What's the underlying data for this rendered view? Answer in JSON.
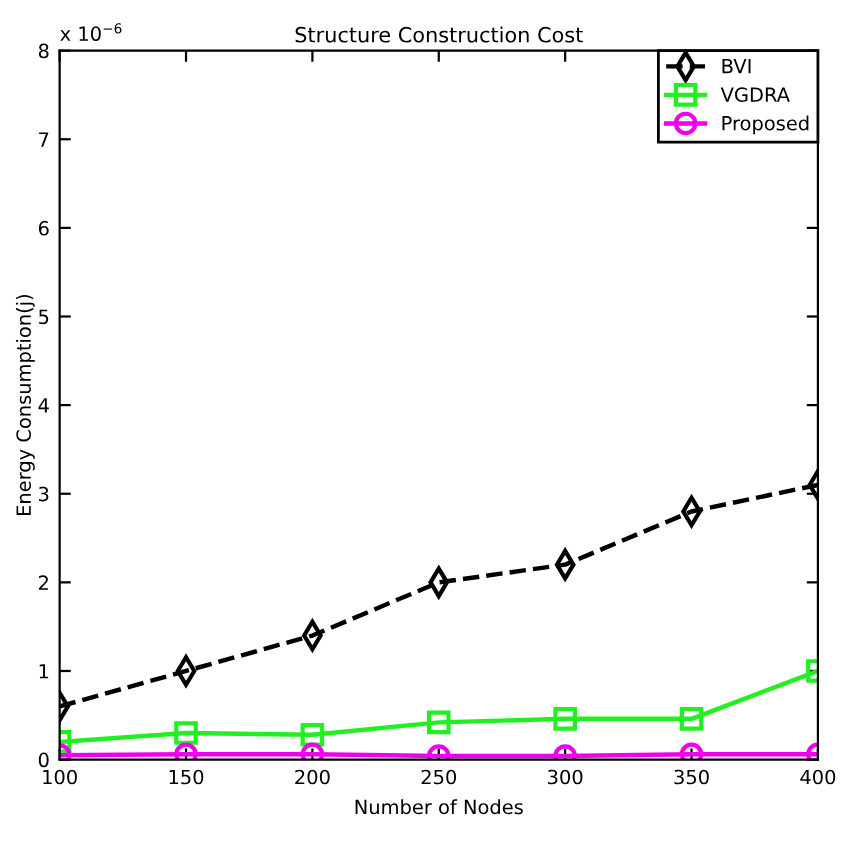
{
  "chart_data": {
    "type": "line",
    "title": "Structure Construction Cost",
    "xlabel": "Number of Nodes",
    "ylabel": "Energy Consumption(j)",
    "annotations": [
      "x 10$^{−6}$"
    ],
    "x": [
      100,
      150,
      200,
      250,
      300,
      350,
      400
    ],
    "series": [
      {
        "name": "BVI",
        "color": "#000000",
        "marker": "diamond",
        "line_style": "dashed",
        "values": [
          0.6,
          1.0,
          1.4,
          2.0,
          2.2,
          2.8,
          3.1
        ]
      },
      {
        "name": "VGDRA",
        "color": "#22ee22",
        "marker": "square",
        "line_style": "solid",
        "values": [
          0.2,
          0.3,
          0.28,
          0.42,
          0.46,
          0.46,
          1.0
        ]
      },
      {
        "name": "Proposed",
        "color": "#ee00ee",
        "marker": "circle",
        "line_style": "solid",
        "values": [
          0.05,
          0.06,
          0.06,
          0.04,
          0.04,
          0.06,
          0.06
        ]
      }
    ],
    "xlim": [
      100,
      400
    ],
    "xticks": [
      100,
      150,
      200,
      250,
      300,
      350,
      400
    ],
    "ylim": [
      0,
      8
    ],
    "yticks": [
      0,
      1,
      2,
      3,
      4,
      5,
      6,
      7,
      8
    ],
    "grid": false,
    "legend": "top right"
  }
}
